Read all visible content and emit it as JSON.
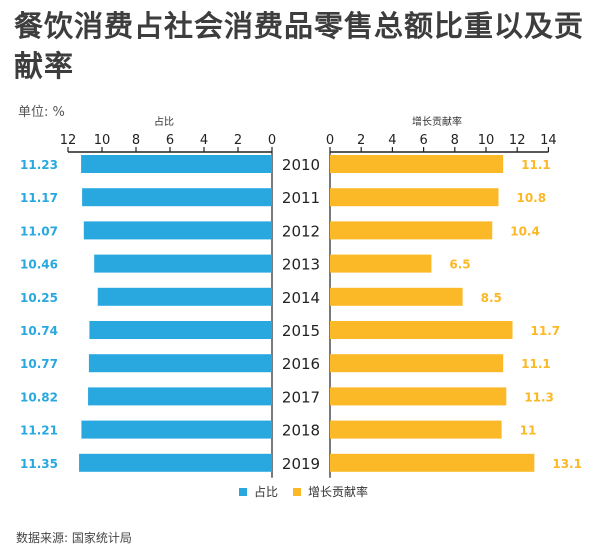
{
  "title": "餐饮消费占社会消费品零售总额比重以及贡献率",
  "unit_label": "单位: %",
  "source": "数据来源: 国家统计局",
  "colors": {
    "share": "#29a8e0",
    "contribution": "#fbb827",
    "axis": "#222222",
    "text": "#333333"
  },
  "chart_data": {
    "type": "bar",
    "orientation": "horizontal",
    "categories": [
      "2010",
      "2011",
      "2012",
      "2013",
      "2014",
      "2015",
      "2016",
      "2017",
      "2018",
      "2019"
    ],
    "series": [
      {
        "name": "占比",
        "values": [
          11.23,
          11.17,
          11.07,
          10.46,
          10.25,
          10.74,
          10.77,
          10.82,
          11.21,
          11.35
        ]
      },
      {
        "name": "增长贡献率",
        "values": [
          11.1,
          10.8,
          10.4,
          6.5,
          8.5,
          11.7,
          11.1,
          11.3,
          11,
          13.1
        ]
      }
    ],
    "left_axis": {
      "title": "占比",
      "ticks": [
        12,
        10,
        8,
        6,
        4,
        2,
        0
      ],
      "range": [
        0,
        12
      ],
      "reversed": true
    },
    "right_axis": {
      "title": "增长贡献率",
      "ticks": [
        0,
        2,
        4,
        6,
        8,
        10,
        12,
        14
      ],
      "range": [
        0,
        14
      ]
    },
    "value_labels_left": [
      "11.23",
      "11.17",
      "11.07",
      "10.46",
      "10.25",
      "10.74",
      "10.77",
      "10.82",
      "11.21",
      "11.35"
    ],
    "value_labels_right": [
      "11.1",
      "10.8",
      "10.4",
      "6.5",
      "8.5",
      "11.7",
      "11.1",
      "11.3",
      "11",
      "13.1"
    ],
    "legend": {
      "position": "bottom-center"
    },
    "grid": false
  }
}
